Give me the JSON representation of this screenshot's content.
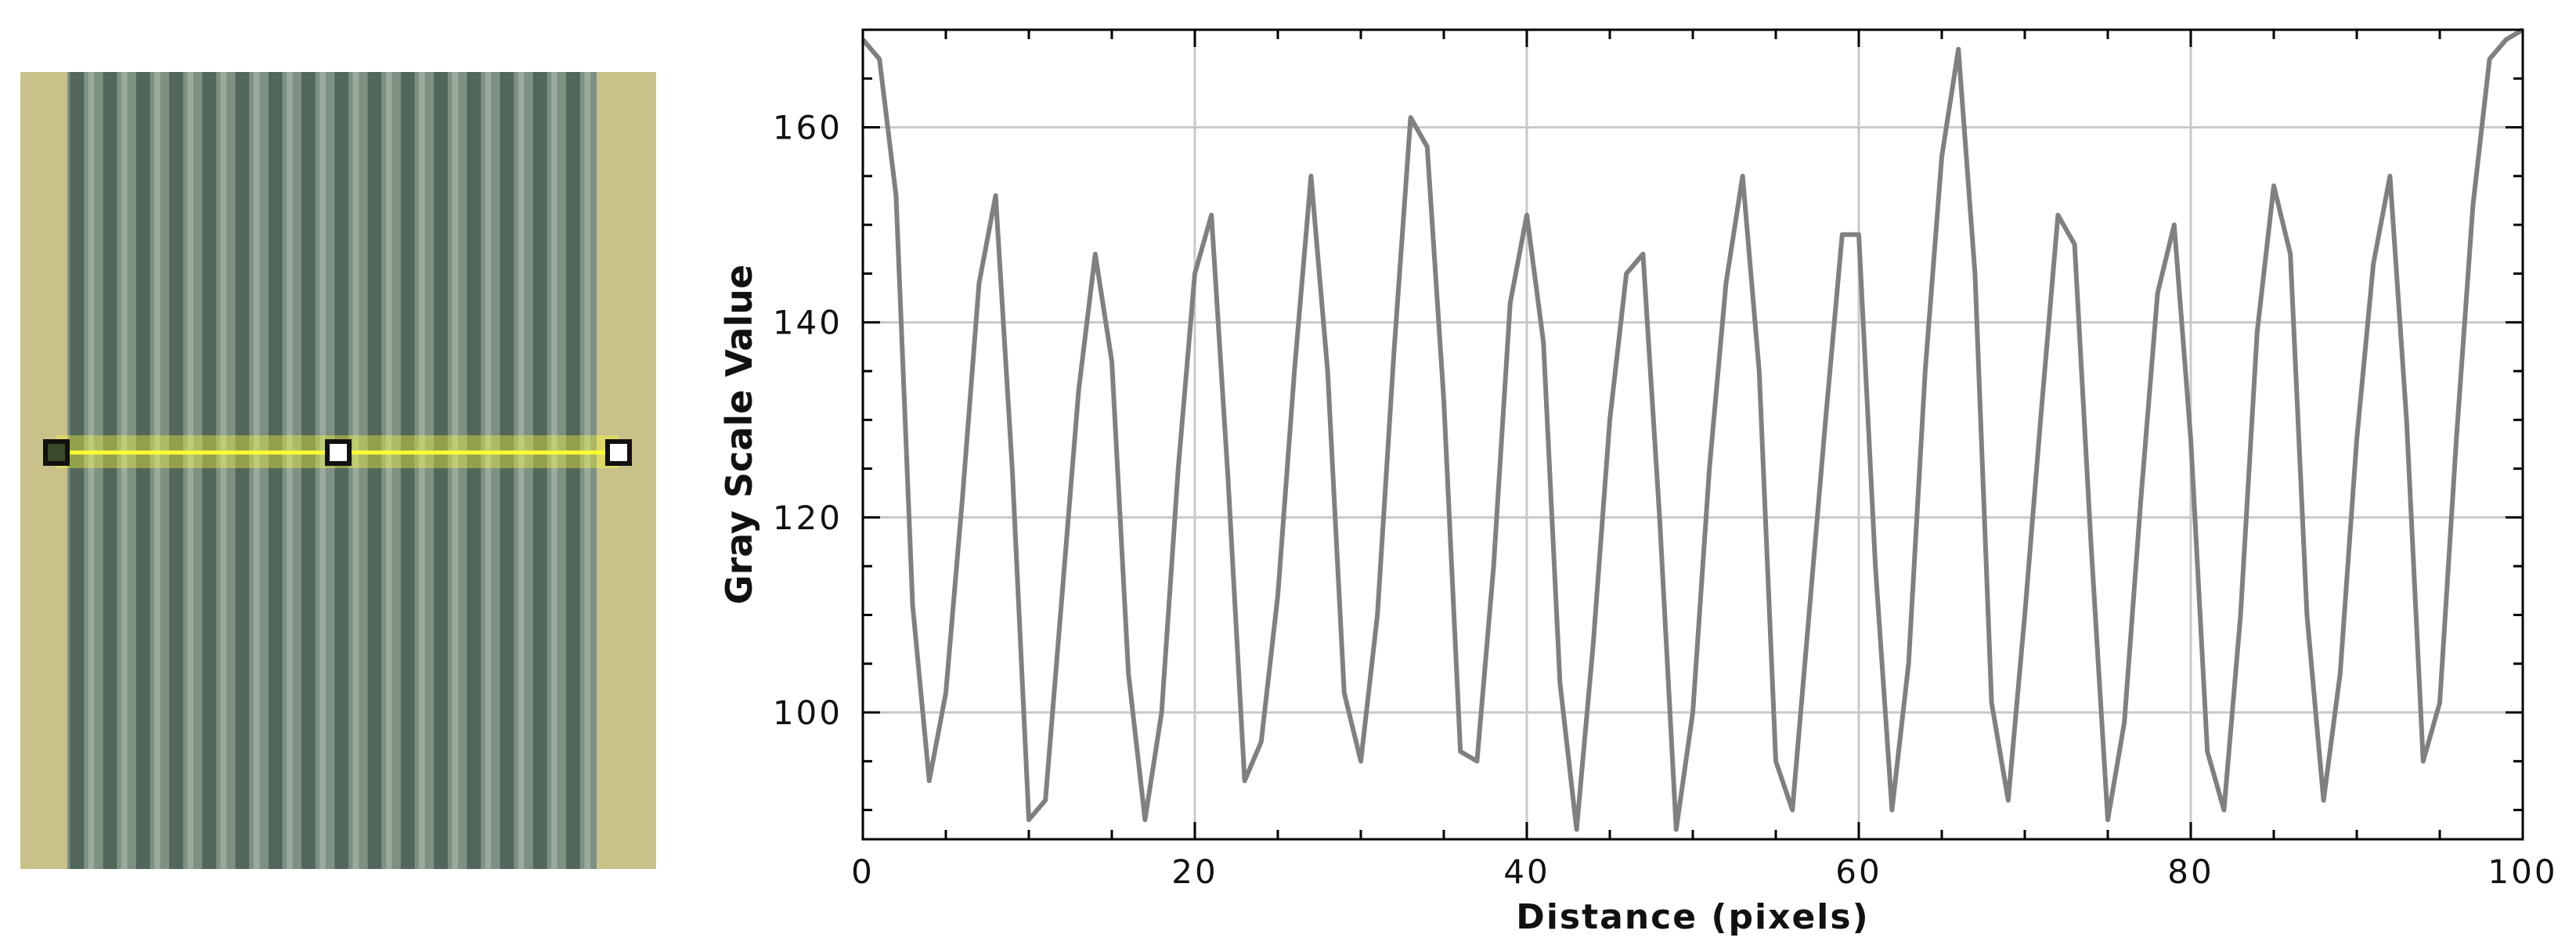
{
  "chart_data": {
    "type": "line",
    "title": "",
    "xlabel": "Distance (pixels)",
    "ylabel": "Gray Scale Value",
    "xlim": [
      0,
      100
    ],
    "ylim": [
      87,
      170
    ],
    "grid": true,
    "x_ticks": [
      "0",
      "20",
      "40",
      "60",
      "80",
      "100"
    ],
    "y_ticks": [
      "100",
      "120",
      "140",
      "160"
    ],
    "x_tick_values": [
      0,
      20,
      40,
      60,
      80,
      100
    ],
    "y_tick_values": [
      100,
      120,
      140,
      160
    ],
    "line_color": "#808080",
    "series": [
      {
        "x": [
          0,
          1,
          2,
          3,
          4,
          5,
          6,
          7,
          8,
          9,
          10,
          11,
          12,
          13,
          14,
          15,
          16,
          17,
          18,
          19,
          20,
          21,
          22,
          23,
          24,
          25,
          26,
          27,
          28,
          29,
          30,
          31,
          32,
          33,
          34,
          35,
          36,
          37,
          38,
          39,
          40,
          41,
          42,
          43,
          44,
          45,
          46,
          47,
          48,
          49,
          50,
          51,
          52,
          53,
          54,
          55,
          56,
          57,
          58,
          59,
          60,
          61,
          62,
          63,
          64,
          65,
          66,
          67,
          68,
          69,
          70,
          71,
          72,
          73,
          74,
          75,
          76,
          77,
          78,
          79,
          80,
          81,
          82,
          83,
          84,
          85,
          86,
          87,
          88,
          89,
          90,
          91,
          92,
          93,
          94,
          95,
          96,
          97,
          98,
          99,
          100
        ],
        "y": [
          169,
          167,
          153,
          111,
          93,
          102,
          122,
          144,
          153,
          125,
          89,
          91,
          112,
          133,
          147,
          136,
          104,
          89,
          100,
          125,
          145,
          151,
          124,
          93,
          97,
          112,
          135,
          155,
          135,
          102,
          95,
          110,
          137,
          161,
          158,
          132,
          96,
          95,
          115,
          142,
          151,
          138,
          103,
          88,
          107,
          130,
          145,
          147,
          120,
          88,
          100,
          125,
          144,
          155,
          135,
          95,
          90,
          110,
          130,
          149,
          149,
          115,
          90,
          105,
          135,
          157,
          168,
          145,
          101,
          91,
          110,
          131,
          151,
          148,
          117,
          89,
          99,
          122,
          143,
          150,
          128,
          96,
          90,
          110,
          139,
          154,
          147,
          110,
          91,
          104,
          128,
          146,
          155,
          130,
          95,
          101,
          128,
          152,
          167,
          169,
          170
        ]
      }
    ]
  },
  "image_panel": {
    "background_color": "#c8c28a",
    "stripe_color": "#4a5f55",
    "profile_line_color": "#ffff33",
    "handle_colors": [
      "#3a4a2a",
      "#ffffff",
      "#ffffff"
    ]
  }
}
